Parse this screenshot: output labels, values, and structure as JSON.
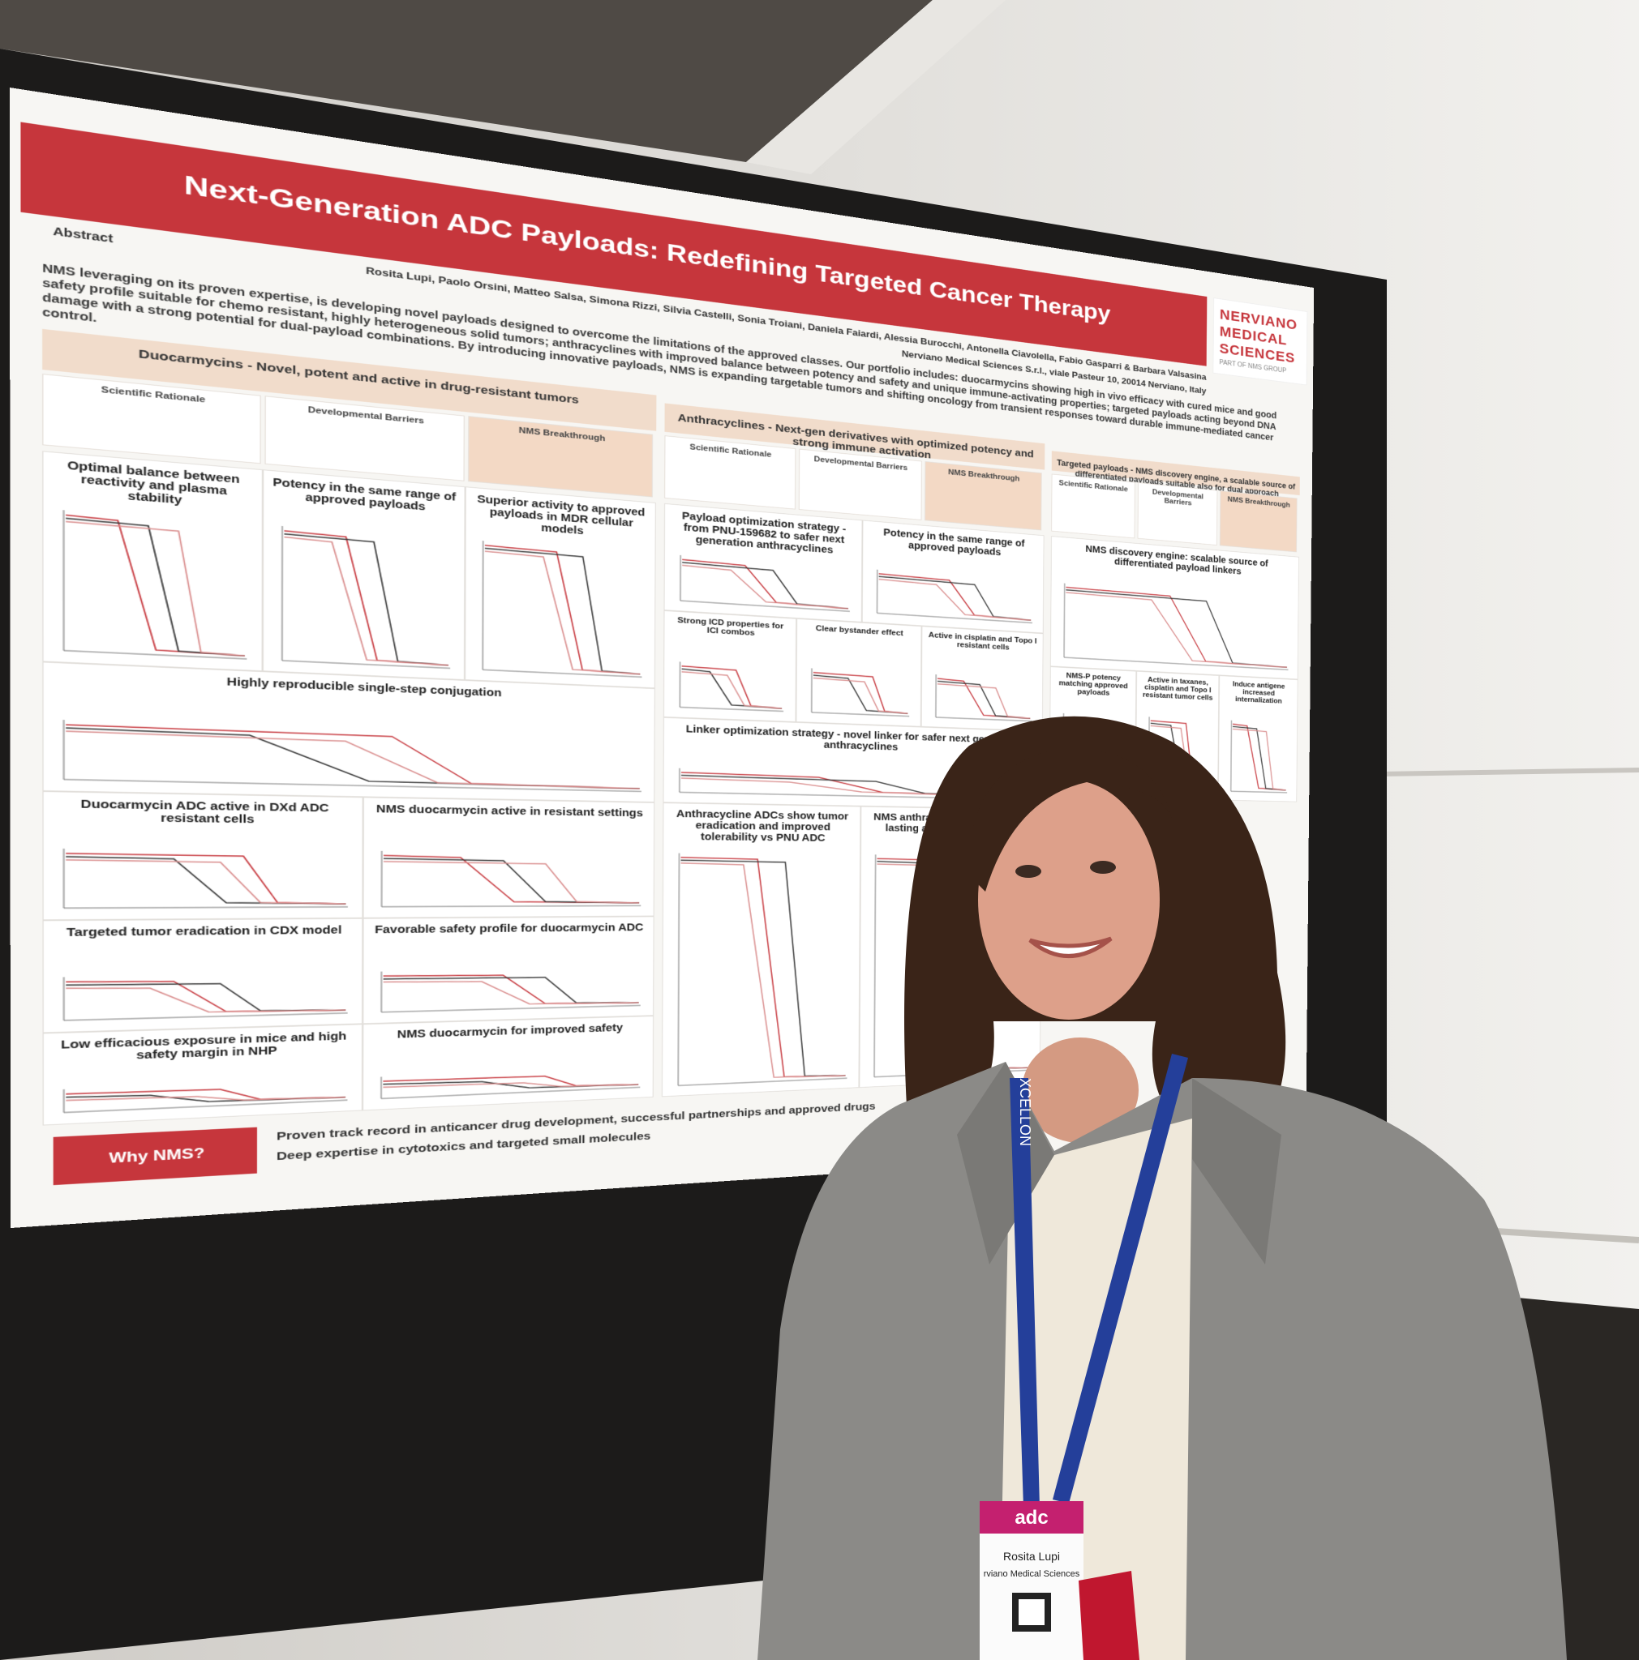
{
  "poster": {
    "title": "Next-Generation ADC Payloads: Redefining Targeted Cancer Therapy",
    "authors": "Rosita Lupi, Paolo Orsini, Matteo Salsa, Simona Rizzi, Silvia Castelli, Sonia Troiani, Daniela Faiardi, Alessia Burocchi, Antonella Ciavolella, Fabio Gasparri & Barbara Valsasina",
    "affiliation": "Nerviano Medical Sciences S.r.l., viale Pasteur 10, 20014 Nerviano, Italy",
    "logo": {
      "lines": [
        "NERVIANO",
        "MEDICAL",
        "SCIENCES"
      ],
      "group": "PART OF NMS GROUP"
    },
    "abstract": {
      "heading": "Abstract",
      "text": "NMS leveraging on its proven expertise, is developing novel payloads designed to overcome the limitations of the approved classes. Our portfolio includes: duocarmycins showing high in vivo efficacy with cured mice and good safety profile suitable for chemo resistant, highly heterogeneous solid tumors; anthracyclines with improved balance between potency and safety and unique immune-activating properties; targeted payloads acting beyond DNA damage with a strong potential for dual-payload combinations. By introducing innovative payloads, NMS is expanding targetable tumors and shifting oncology from transient responses toward durable immune-mediated cancer control."
    },
    "sections": [
      {
        "header": "Duocarmycins - Novel, potent and active in drug-resistant tumors",
        "subheads": [
          "Scientific Rationale",
          "Developmental Barriers",
          "NMS Breakthrough"
        ],
        "panels": [
          "Optimal balance between reactivity and plasma stability",
          "Potency in the same range of approved payloads",
          "Superior activity to approved payloads in MDR cellular models",
          "Highly reproducible single-step conjugation",
          "Duocarmycin ADC active in DXd ADC resistant cells",
          "NMS duocarmycin active in resistant settings",
          "Targeted tumor eradication in CDX model",
          "Favorable safety profile for duocarmycin ADC",
          "Low efficacious exposure in mice and high safety margin in NHP",
          "NMS duocarmycin for improved safety"
        ]
      },
      {
        "header": "Anthracyclines - Next-gen derivatives with optimized potency and strong immune activation",
        "subheads": [
          "Scientific Rationale",
          "Developmental Barriers",
          "NMS Breakthrough"
        ],
        "panels": [
          "Payload optimization strategy - from PNU-159682 to safer next generation anthracyclines",
          "Potency in the same range of approved payloads",
          "Strong ICD properties for ICI combos",
          "Clear bystander effect",
          "Active in cisplatin and Topo I resistant cells",
          "Linker optimization strategy - novel linker for safer next generation anthracyclines",
          "Anthracycline ADCs show tumor eradication and improved tolerability vs PNU ADC",
          "NMS anthracycline ADCs deliver lasting anti-tumor immunity"
        ]
      },
      {
        "header": "Targeted payloads - NMS discovery engine, a scalable source of differentiated payloads suitable also for dual approach",
        "subheads": [
          "Scientific Rationale",
          "Developmental Barriers",
          "NMS Breakthrough"
        ],
        "panels": [
          "NMS discovery engine: scalable source of differentiated payload linkers",
          "NMS-P potency matching approved payloads",
          "Active in taxanes, cisplatin and Topo I resistant tumor cells",
          "Induce antigene increased internalization"
        ]
      }
    ],
    "footer": {
      "label": "Why NMS?",
      "bullets": [
        "Proven track record in anticancer drug development, successful partnerships and approved drugs",
        "Deep expertise in cytotoxics and targeted small molecules"
      ]
    }
  },
  "badge": {
    "lanyard": "XCELLON",
    "name": "Rosita Lupi",
    "org": "rviano Medical Sciences",
    "event": "adc"
  }
}
